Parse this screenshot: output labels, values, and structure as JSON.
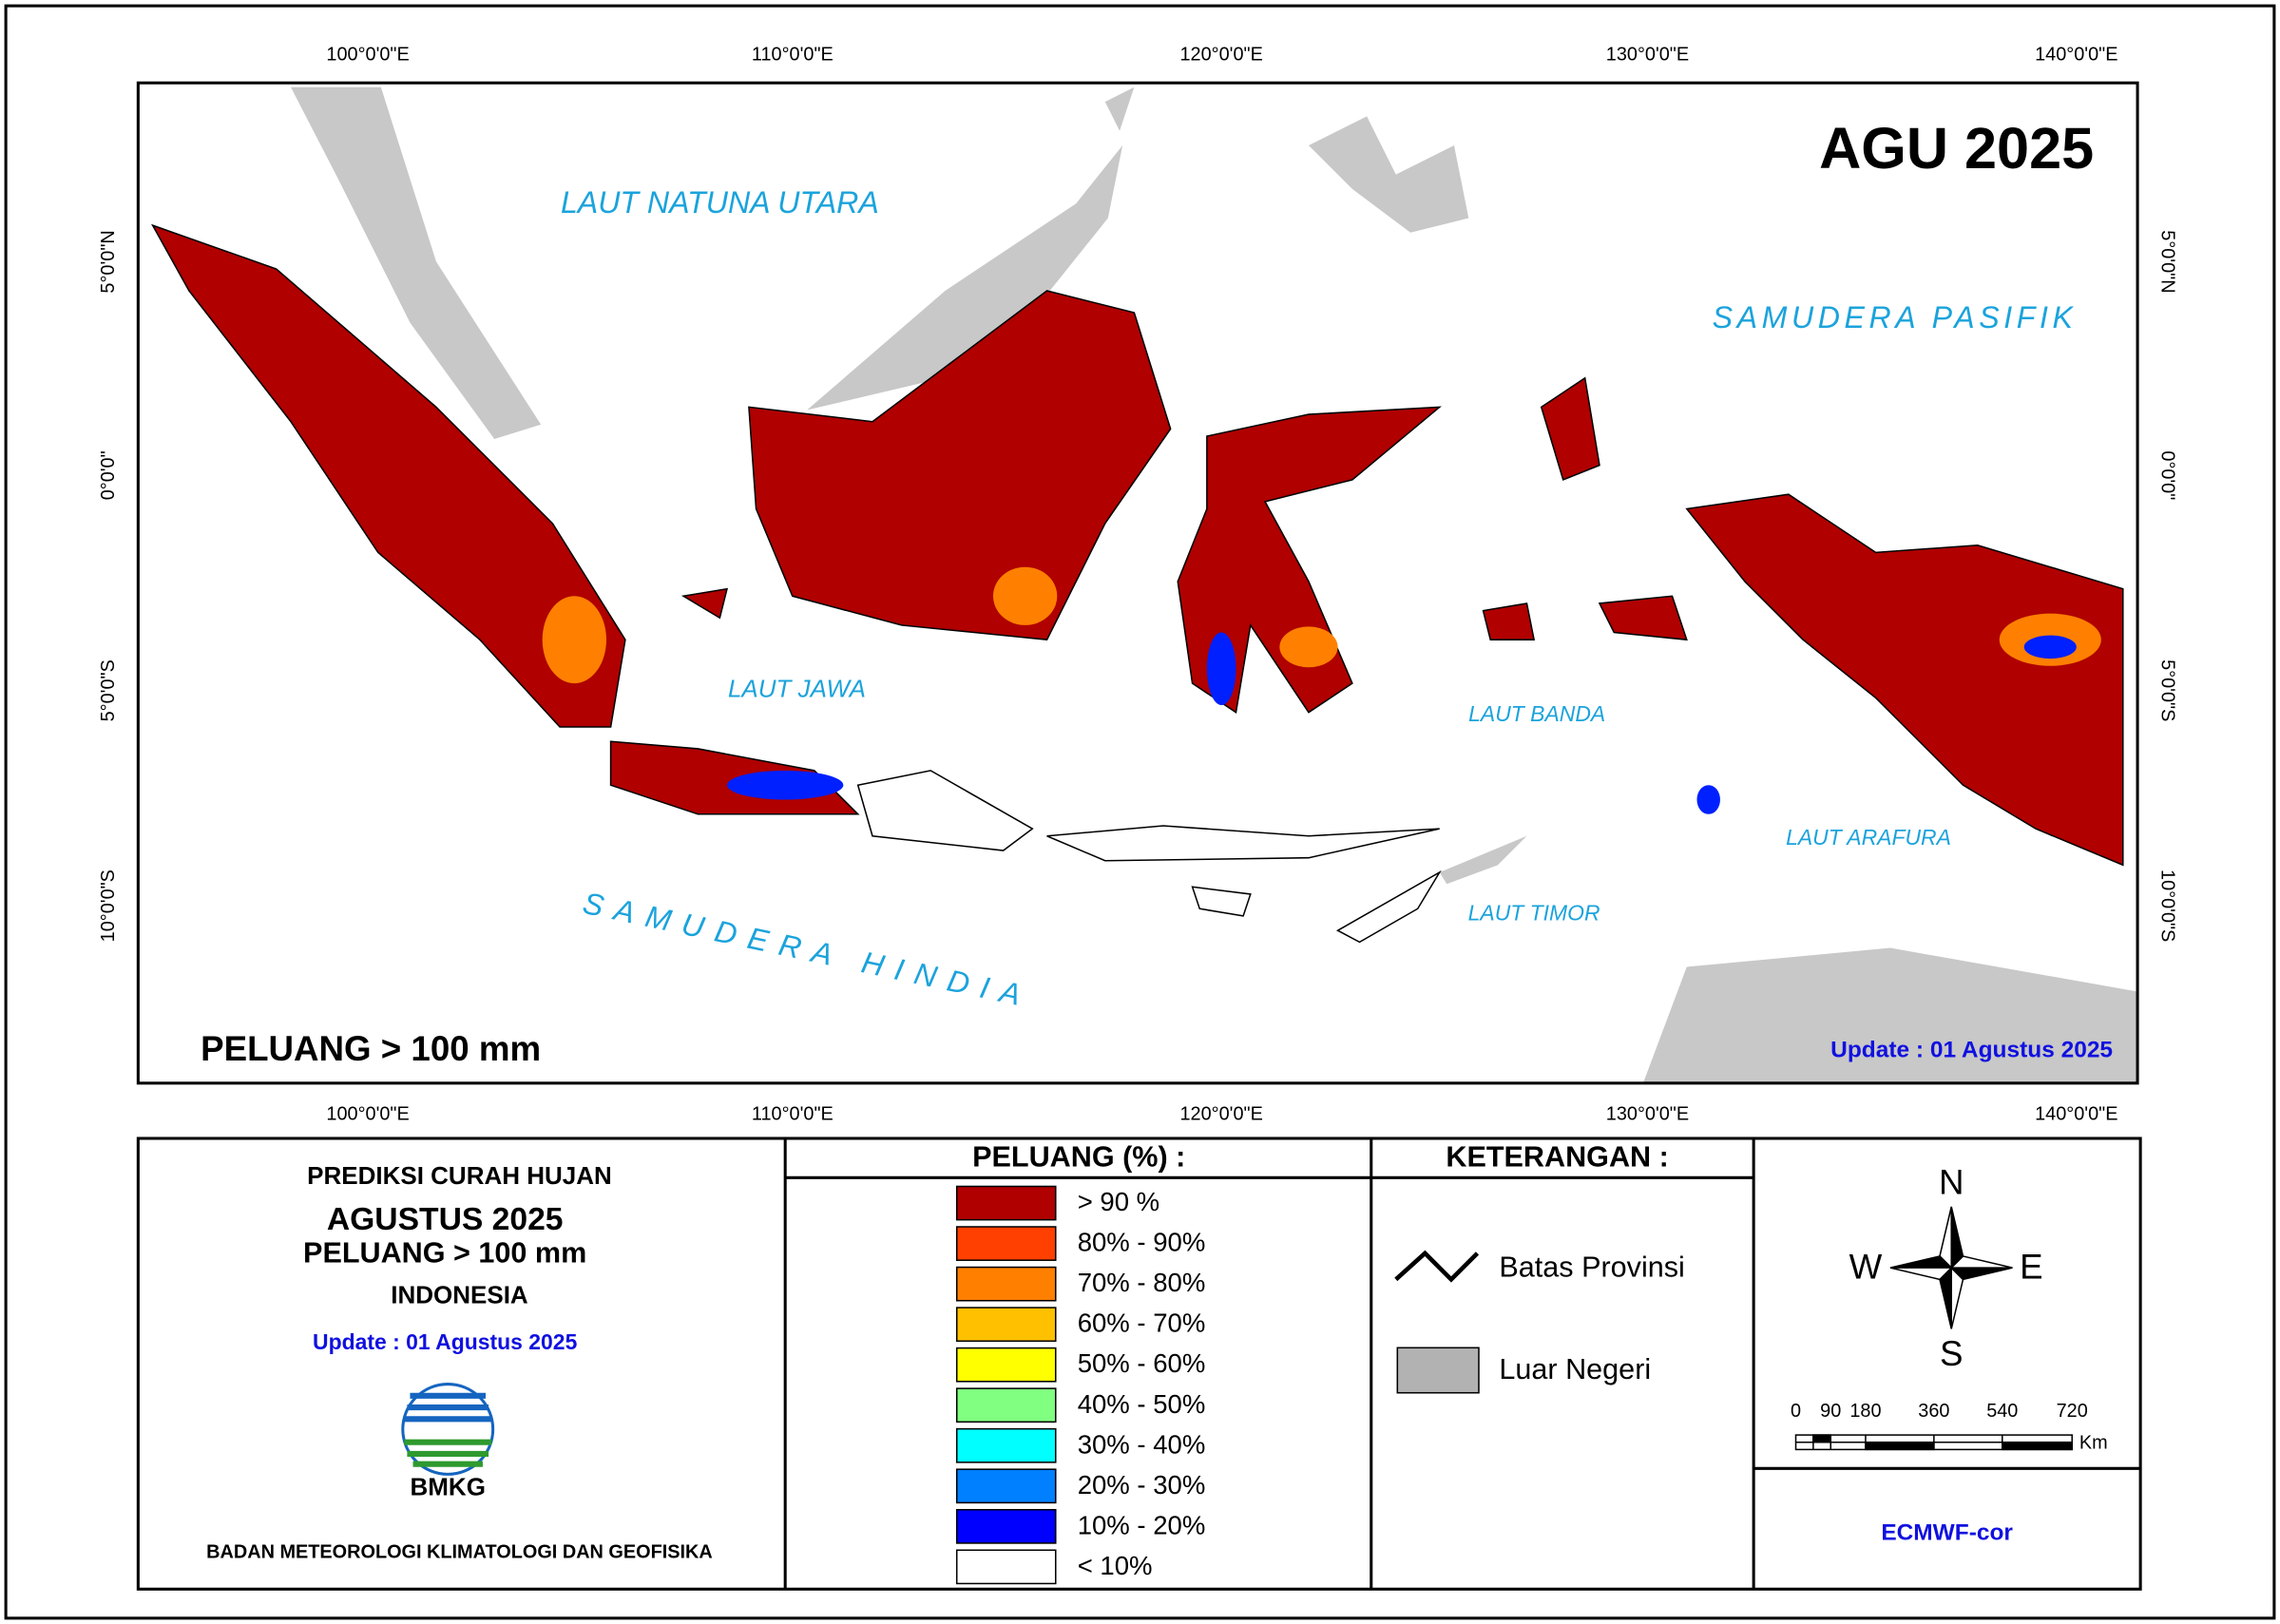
{
  "map": {
    "title": "AGU 2025",
    "subtitle": "PELUANG > 100 mm",
    "update": "Update : 01 Agustus  2025",
    "lon_labels": [
      "100°0'0\"E",
      "110°0'0\"E",
      "120°0'0\"E",
      "130°0'0\"E",
      "140°0'0\"E"
    ],
    "lat_labels": [
      "5°0'0\"N",
      "0°0'0\"",
      "5°0'0\"S",
      "10°0'0\"S"
    ],
    "sea_labels": [
      "LAUT NATUNA UTARA",
      "SAMUDERA PASIFIK",
      "LAUT JAWA",
      "LAUT BANDA",
      "LAUT ARAFURA",
      "LAUT TIMOR",
      "SAMUDERA HINDIA"
    ]
  },
  "info": {
    "heading": "PREDIKSI CURAH HUJAN",
    "month": "AGUSTUS 2025",
    "threshold": "PELUANG > 100 mm",
    "region": "INDONESIA",
    "update": "Update : 01 Agustus  2025",
    "logo": "BMKG",
    "agency": "BADAN METEOROLOGI KLIMATOLOGI DAN GEOFISIKA"
  },
  "legend": {
    "title": "PELUANG (%) :",
    "items": [
      {
        "label": "> 90 %",
        "color": "#b00000"
      },
      {
        "label": "80% - 90%",
        "color": "#ff4000"
      },
      {
        "label": "70% - 80%",
        "color": "#ff8000"
      },
      {
        "label": "60% - 70%",
        "color": "#ffc000"
      },
      {
        "label": "50% - 60%",
        "color": "#ffff00"
      },
      {
        "label": "40% - 50%",
        "color": "#80ff80"
      },
      {
        "label": "30% - 40%",
        "color": "#00ffff"
      },
      {
        "label": "20% - 30%",
        "color": "#0080ff"
      },
      {
        "label": "10% - 20%",
        "color": "#0000ff"
      },
      {
        "label": "< 10%",
        "color": "#ffffff"
      }
    ]
  },
  "keterangan": {
    "title": "KETERANGAN :",
    "items": [
      "Batas Provinsi",
      "Luar Negeri"
    ]
  },
  "compass": {
    "n": "N",
    "e": "E",
    "s": "S",
    "w": "W"
  },
  "scale": {
    "labels": [
      "0",
      "90",
      "180",
      "360",
      "540",
      "720"
    ],
    "unit": "Km"
  },
  "model": "ECMWF-cor"
}
